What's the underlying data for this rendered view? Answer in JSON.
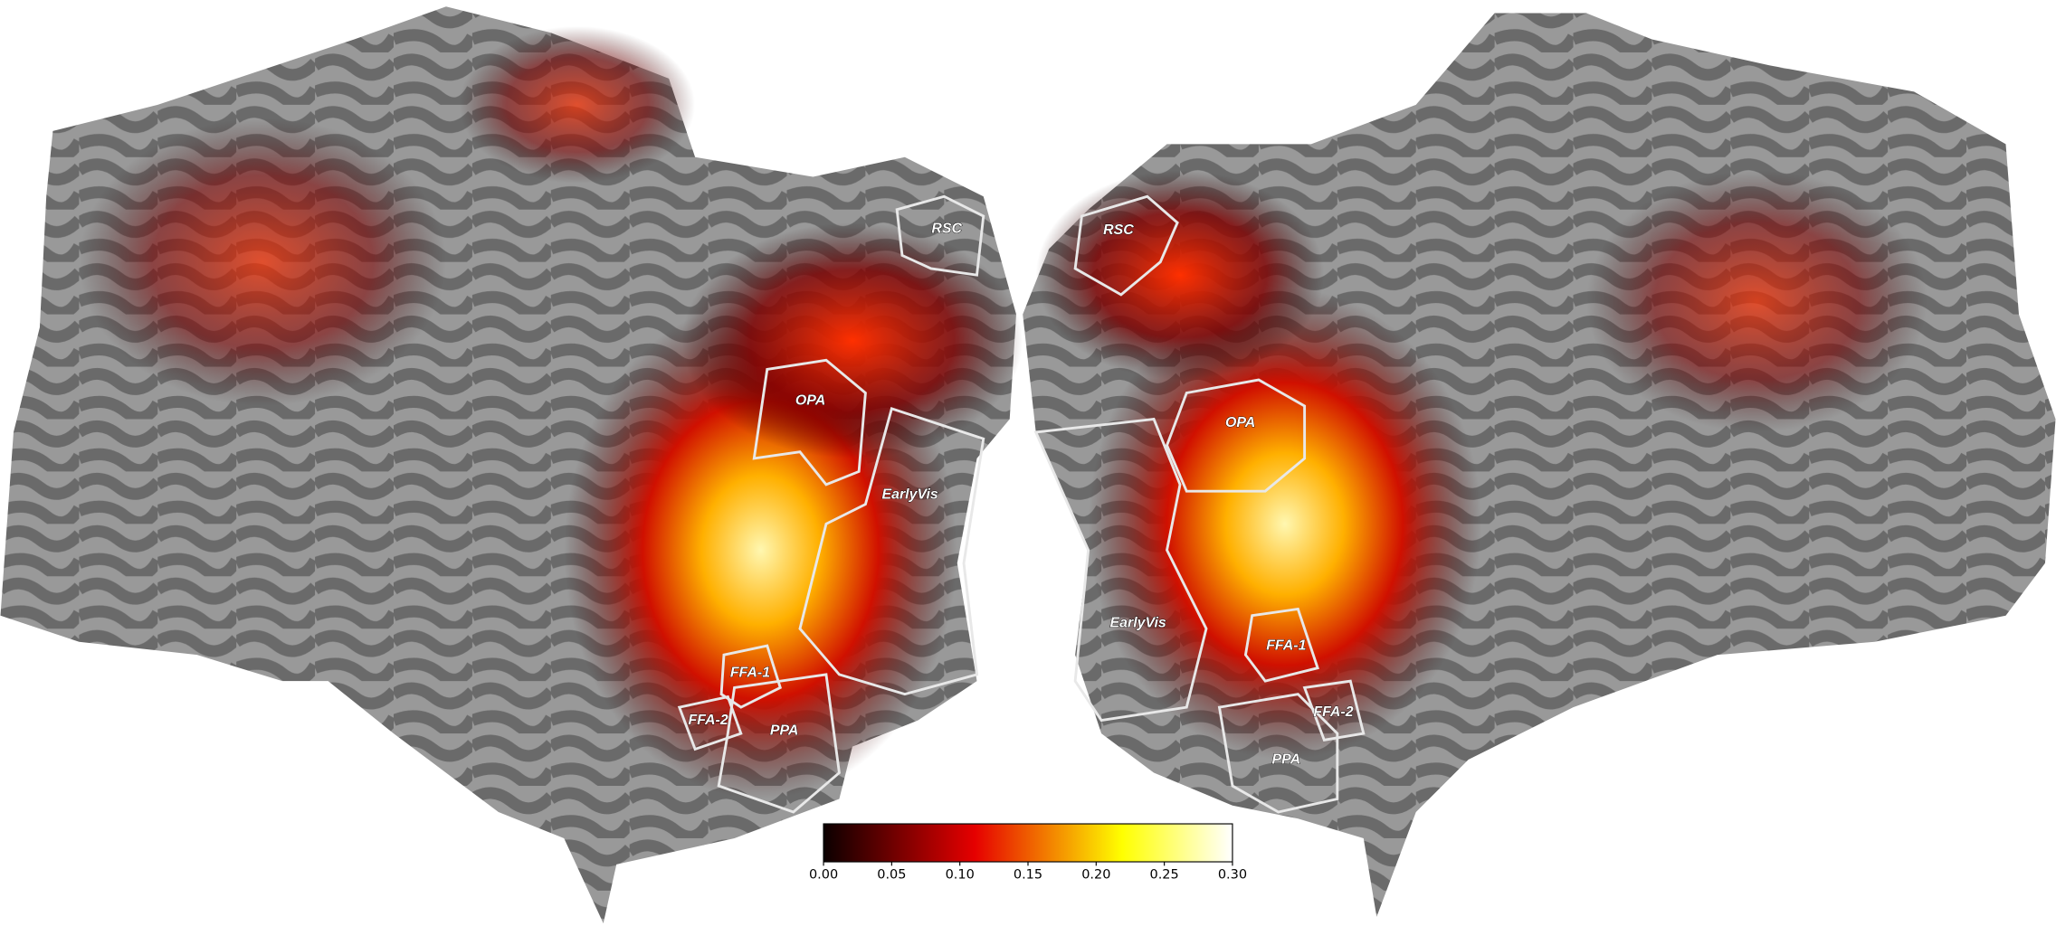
{
  "left_hemisphere": {
    "rois": [
      "RSC",
      "OPA",
      "EarlyVis",
      "FFA-1",
      "FFA-2",
      "PPA"
    ]
  },
  "right_hemisphere": {
    "rois": [
      "RSC",
      "OPA",
      "EarlyVis",
      "FFA-1",
      "FFA-2",
      "PPA"
    ]
  },
  "colorbar": {
    "lim": [
      0,
      0.3
    ],
    "ticks": [
      {
        "value": 0,
        "label": "0.00"
      },
      {
        "value": 0.05,
        "label": "0.05"
      },
      {
        "value": 0.1,
        "label": "0.10"
      },
      {
        "value": 0.15,
        "label": "0.15"
      },
      {
        "value": 0.2,
        "label": "0.20"
      },
      {
        "value": 0.25,
        "label": "0.25"
      },
      {
        "value": 0.3,
        "label": "0.30"
      }
    ]
  }
}
